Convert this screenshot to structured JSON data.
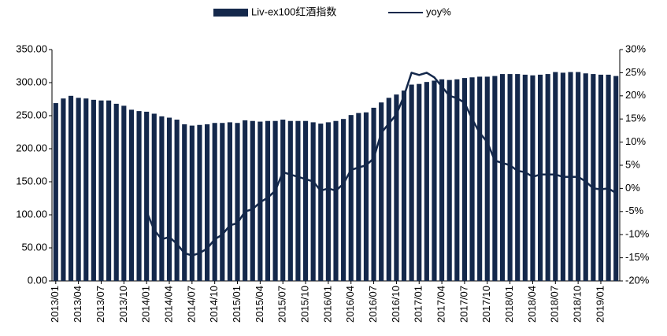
{
  "chart_data": {
    "type": "bar-line",
    "categories": [
      "2013/01",
      null,
      null,
      "2013/04",
      null,
      null,
      "2013/07",
      null,
      null,
      "2013/10",
      null,
      null,
      "2014/01",
      null,
      null,
      "2014/04",
      null,
      null,
      "2014/07",
      null,
      null,
      "2014/10",
      null,
      null,
      "2015/01",
      null,
      null,
      "2015/04",
      null,
      null,
      "2015/07",
      null,
      null,
      "2015/10",
      null,
      null,
      "2016/01",
      null,
      null,
      "2016/04",
      null,
      null,
      "2016/07",
      null,
      null,
      "2016/10",
      null,
      null,
      "2017/01",
      null,
      null,
      "2017/04",
      null,
      null,
      "2017/07",
      null,
      null,
      "2017/10",
      null,
      null,
      "2018/01",
      null,
      null,
      "2018/04",
      null,
      null,
      "2018/07",
      null,
      null,
      "2018/10",
      null,
      null,
      "2019/01",
      null,
      null
    ],
    "series": [
      {
        "name": "Liv-ex100红酒指数",
        "color": "#14284b",
        "type": "bar",
        "values": [
          269,
          276,
          280,
          277,
          276,
          274,
          273,
          273,
          268,
          265,
          259,
          257,
          256,
          253,
          249,
          247,
          244,
          237,
          235,
          236,
          237,
          239,
          239,
          240,
          239,
          243,
          242,
          241,
          242,
          242,
          244,
          242,
          242,
          242,
          240,
          238,
          240,
          242,
          245,
          251,
          254,
          255,
          262,
          270,
          277,
          282,
          288,
          297,
          298,
          301,
          303,
          305,
          304,
          305,
          307,
          308,
          309,
          309,
          310,
          313,
          313,
          313,
          312,
          311,
          312,
          313,
          316,
          315,
          316,
          316,
          314,
          313,
          312,
          312,
          310
        ]
      },
      {
        "name": "yoy%",
        "color": "#14284b",
        "type": "line",
        "axis": "y2",
        "values": [
          null,
          null,
          null,
          null,
          null,
          null,
          null,
          null,
          null,
          null,
          null,
          null,
          -5,
          -9,
          -11,
          -10.5,
          -12,
          -14,
          -14.5,
          -14,
          -13,
          -11,
          -10,
          -8,
          -7.5,
          -5,
          -4.5,
          -3,
          -2,
          -0.5,
          3.5,
          3,
          2.5,
          2,
          1.5,
          -0.5,
          0,
          -0.5,
          1,
          4,
          4.5,
          5,
          6.5,
          12,
          14,
          16,
          20,
          25,
          24.5,
          25,
          24,
          22,
          20,
          19.5,
          18.5,
          15,
          12,
          10,
          6,
          5.5,
          5,
          3.8,
          3.5,
          2.5,
          3,
          3,
          3,
          2.5,
          2.5,
          2.5,
          1.5,
          0,
          -0.2,
          0,
          -1
        ]
      }
    ],
    "ylim": [
      0,
      350
    ],
    "yticks": [
      {
        "value": 0,
        "label": "0.00"
      },
      {
        "value": 50,
        "label": "50.00"
      },
      {
        "value": 100,
        "label": "100.00"
      },
      {
        "value": 150,
        "label": "150.00"
      },
      {
        "value": 200,
        "label": "200.00"
      },
      {
        "value": 250,
        "label": "250.00"
      },
      {
        "value": 300,
        "label": "300.00"
      },
      {
        "value": 350,
        "label": "350.00"
      }
    ],
    "y2lim": [
      -20,
      30
    ],
    "y2ticks": [
      {
        "value": -20,
        "label": "-20%"
      },
      {
        "value": -15,
        "label": "-15%"
      },
      {
        "value": -10,
        "label": "-10%"
      },
      {
        "value": -5,
        "label": "-5%"
      },
      {
        "value": 0,
        "label": "0%"
      },
      {
        "value": 5,
        "label": "5%"
      },
      {
        "value": 10,
        "label": "10%"
      },
      {
        "value": 15,
        "label": "15%"
      },
      {
        "value": 20,
        "label": "20%"
      },
      {
        "value": 25,
        "label": "25%"
      },
      {
        "value": 30,
        "label": "30%"
      }
    ],
    "legend": "top",
    "grid": false
  }
}
